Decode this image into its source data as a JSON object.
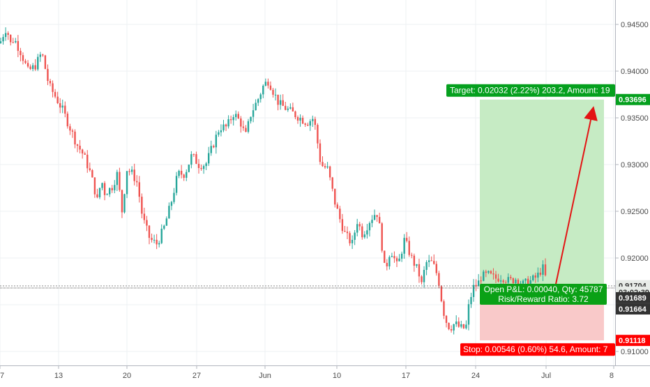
{
  "chart_data": {
    "type": "candlestick",
    "grid": true,
    "y_range": [
      0.908,
      0.947
    ],
    "y_ticks": [
      "0.94500",
      "0.94000",
      "0.93500",
      "0.93000",
      "0.92500",
      "0.92000",
      "0.91000"
    ],
    "x_ticks": [
      "7",
      "13",
      "20",
      "27",
      "Jun",
      "10",
      "17",
      "24",
      "Jul",
      "8"
    ],
    "price_path": [
      [
        0,
        0.943
      ],
      [
        5,
        0.944
      ],
      [
        10,
        0.9448
      ],
      [
        14,
        0.9428
      ],
      [
        20,
        0.9435
      ],
      [
        30,
        0.942
      ],
      [
        40,
        0.94
      ],
      [
        50,
        0.9405
      ],
      [
        60,
        0.942
      ],
      [
        70,
        0.9385
      ],
      [
        80,
        0.9372
      ],
      [
        90,
        0.9358
      ],
      [
        100,
        0.934
      ],
      [
        110,
        0.9322
      ],
      [
        120,
        0.931
      ],
      [
        130,
        0.929
      ],
      [
        140,
        0.926
      ],
      [
        145,
        0.9285
      ],
      [
        150,
        0.927
      ],
      [
        160,
        0.9275
      ],
      [
        168,
        0.929
      ],
      [
        175,
        0.925
      ],
      [
        182,
        0.9295
      ],
      [
        190,
        0.929
      ],
      [
        197,
        0.928
      ],
      [
        204,
        0.9245
      ],
      [
        208,
        0.9235
      ],
      [
        215,
        0.922
      ],
      [
        225,
        0.9215
      ],
      [
        235,
        0.9232
      ],
      [
        245,
        0.9258
      ],
      [
        255,
        0.929
      ],
      [
        265,
        0.929
      ],
      [
        275,
        0.931
      ],
      [
        285,
        0.93
      ],
      [
        295,
        0.93
      ],
      [
        305,
        0.932
      ],
      [
        315,
        0.934
      ],
      [
        325,
        0.934
      ],
      [
        335,
        0.9355
      ],
      [
        345,
        0.9345
      ],
      [
        352,
        0.933
      ],
      [
        360,
        0.9355
      ],
      [
        370,
        0.937
      ],
      [
        378,
        0.9385
      ],
      [
        385,
        0.939
      ],
      [
        392,
        0.9378
      ],
      [
        400,
        0.9365
      ],
      [
        410,
        0.936
      ],
      [
        420,
        0.9355
      ],
      [
        430,
        0.935
      ],
      [
        440,
        0.9345
      ],
      [
        450,
        0.935
      ],
      [
        460,
        0.93
      ],
      [
        470,
        0.9295
      ],
      [
        480,
        0.926
      ],
      [
        488,
        0.924
      ],
      [
        495,
        0.9225
      ],
      [
        505,
        0.9215
      ],
      [
        512,
        0.924
      ],
      [
        520,
        0.9225
      ],
      [
        530,
        0.924
      ],
      [
        540,
        0.925
      ],
      [
        545,
        0.923
      ],
      [
        552,
        0.9185
      ],
      [
        560,
        0.921
      ],
      [
        570,
        0.919
      ],
      [
        580,
        0.922
      ],
      [
        590,
        0.92
      ],
      [
        600,
        0.9185
      ],
      [
        605,
        0.917
      ],
      [
        610,
        0.9195
      ],
      [
        620,
        0.9195
      ],
      [
        628,
        0.918
      ],
      [
        632,
        0.916
      ],
      [
        638,
        0.9135
      ],
      [
        645,
        0.9125
      ],
      [
        652,
        0.913
      ],
      [
        660,
        0.9125
      ],
      [
        668,
        0.9125
      ],
      [
        672,
        0.9148
      ],
      [
        678,
        0.9168
      ],
      [
        685,
        0.9172
      ],
      [
        690,
        0.918
      ],
      [
        700,
        0.9182
      ],
      [
        710,
        0.9178
      ],
      [
        720,
        0.918
      ],
      [
        730,
        0.9175
      ],
      [
        740,
        0.9178
      ],
      [
        750,
        0.9172
      ],
      [
        760,
        0.9175
      ],
      [
        770,
        0.918
      ],
      [
        778,
        0.919
      ],
      [
        785,
        0.9172
      ]
    ],
    "current_price_line": 0.91694,
    "position": {
      "side": "long",
      "entry_price": 0.91664,
      "target_price": 0.93696,
      "stop_price": 0.91118,
      "target_text": "Target: 0.02032 (2.22%) 203.2, Amount: 19",
      "stop_text": "Stop: 0.00546 (0.60%) 54.6, Amount: 7",
      "pnl_text": "Open P&L: 0.00040, Qty: 45787",
      "rr_text": "Risk/Reward Ratio: 3.72"
    },
    "price_tags": [
      {
        "text": "0.93696",
        "price": 0.93696,
        "kind": "target"
      },
      {
        "text": "0.91704",
        "price": 0.91704,
        "kind": "pale"
      },
      {
        "text": "03:02:39",
        "price": 0.91634,
        "kind": "pale"
      },
      {
        "text": "0.91689",
        "price": 0.91575,
        "kind": "dark"
      },
      {
        "text": "0.91664",
        "price": 0.91455,
        "kind": "dark"
      },
      {
        "text": "0.91118",
        "price": 0.91118,
        "kind": "stop"
      }
    ]
  },
  "colors": {
    "up": "#26a69a",
    "down": "#ef5350",
    "grid": "#eef0f3",
    "axis": "#b2b5be",
    "profit_zone": "#c6ebc4",
    "loss_zone": "#f9c9c9",
    "target_label": "#05a01e",
    "stop_label": "#ff0000",
    "dark_tag": "#333333",
    "pale_tag": "#e8ece8",
    "arrow": "#e31414"
  }
}
